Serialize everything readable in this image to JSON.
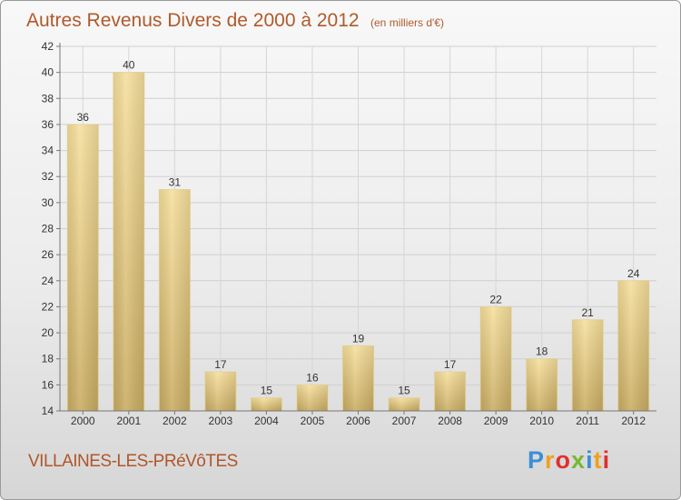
{
  "header": {
    "title": "Autres Revenus Divers de 2000 à 2012",
    "subtitle": "(en milliers d'€)"
  },
  "footer": {
    "commune": "VILLAINES-LES-PRéVôTES",
    "logo_text": "Proxiti",
    "logo_colors": [
      "#3b8fd6",
      "#f0a020",
      "#e03030",
      "#78b830",
      "#3b8fd6",
      "#f0a020",
      "#e03030"
    ]
  },
  "chart_data": {
    "type": "bar",
    "categories": [
      "2000",
      "2001",
      "2002",
      "2003",
      "2004",
      "2005",
      "2006",
      "2007",
      "2008",
      "2009",
      "2010",
      "2011",
      "2012"
    ],
    "values": [
      36,
      40,
      31,
      17,
      15,
      16,
      19,
      15,
      17,
      22,
      18,
      21,
      24
    ],
    "data_labels": [
      "36",
      "40",
      "31",
      "17",
      "15",
      "16",
      "19",
      "15",
      "17",
      "22",
      "18",
      "21",
      "24"
    ],
    "ylim": [
      14,
      42
    ],
    "yticks": [
      14,
      16,
      18,
      20,
      22,
      24,
      26,
      28,
      30,
      32,
      34,
      36,
      38,
      40,
      42
    ],
    "grid": true,
    "bar_color": "#e3c77e"
  }
}
